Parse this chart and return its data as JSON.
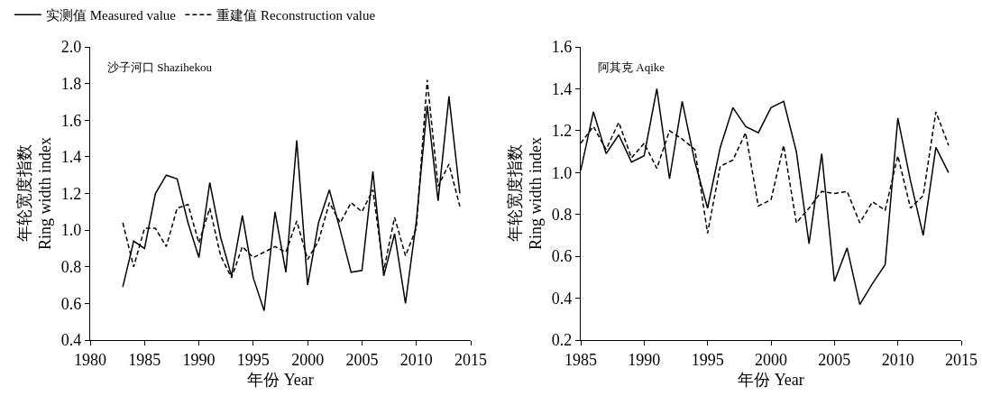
{
  "chart_data": [
    {
      "type": "line",
      "annotations": [
        "沙子河口 Shazihekou"
      ],
      "xlabel": "年份 Year",
      "ylabel": "年轮宽度指数\nRing width index",
      "x": [
        1983,
        1984,
        1985,
        1986,
        1987,
        1988,
        1989,
        1990,
        1991,
        1992,
        1993,
        1994,
        1995,
        1996,
        1997,
        1998,
        1999,
        2000,
        2001,
        2002,
        2003,
        2004,
        2005,
        2006,
        2007,
        2008,
        2009,
        2010,
        2011,
        2012,
        2013,
        2014
      ],
      "series": [
        {
          "name": "实测值 Measured value",
          "color": "#000000",
          "line_style": "solid",
          "values": [
            0.69,
            0.94,
            0.9,
            1.2,
            1.3,
            1.28,
            1.04,
            0.85,
            1.26,
            0.96,
            0.75,
            1.08,
            0.74,
            0.56,
            1.1,
            0.77,
            1.49,
            0.7,
            1.04,
            1.22,
            1.0,
            0.77,
            0.78,
            1.32,
            0.75,
            0.98,
            0.6,
            1.05,
            1.68,
            1.16,
            1.73,
            1.2
          ]
        },
        {
          "name": "重建值 Reconstruction value",
          "color": "#000000",
          "line_style": "dashed",
          "values": [
            1.04,
            0.8,
            1.01,
            1.01,
            0.91,
            1.12,
            1.14,
            0.93,
            1.12,
            0.86,
            0.74,
            0.91,
            0.85,
            0.88,
            0.91,
            0.88,
            1.05,
            0.84,
            0.94,
            1.15,
            1.04,
            1.15,
            1.1,
            1.22,
            0.78,
            1.07,
            0.86,
            1.01,
            1.82,
            1.24,
            1.36,
            1.13
          ]
        }
      ],
      "xlim": [
        1980,
        2015
      ],
      "xticks": [
        1980,
        1985,
        1990,
        1995,
        2000,
        2005,
        2010,
        2015
      ],
      "ylim": [
        0.4,
        2.0
      ],
      "yticks": [
        {
          "value": 0.4,
          "label": "0.4"
        },
        {
          "value": 0.6,
          "label": "0.6"
        },
        {
          "value": 0.8,
          "label": "0.8"
        },
        {
          "value": 1.0,
          "label": "1.0"
        },
        {
          "value": 1.2,
          "label": "1.2"
        },
        {
          "value": 1.4,
          "label": "1.4"
        },
        {
          "value": 1.6,
          "label": "1.6"
        },
        {
          "value": 1.8,
          "label": "1.8"
        },
        {
          "value": 2.0,
          "label": "2.0"
        }
      ],
      "grid": false,
      "legend": "top",
      "marker": "none"
    },
    {
      "type": "line",
      "annotations": [
        "阿其克 Aqike"
      ],
      "xlabel": "年份 Year",
      "ylabel": "年轮宽度指数\nRing width index",
      "x": [
        1985,
        1986,
        1987,
        1988,
        1989,
        1990,
        1991,
        1992,
        1993,
        1994,
        1995,
        1996,
        1997,
        1998,
        1999,
        2000,
        2001,
        2002,
        2003,
        2004,
        2005,
        2006,
        2007,
        2008,
        2009,
        2010,
        2011,
        2012,
        2013,
        2014
      ],
      "series": [
        {
          "color": "#000000",
          "line_style": "solid",
          "values": [
            1.01,
            1.29,
            1.09,
            1.18,
            1.05,
            1.08,
            1.4,
            0.97,
            1.34,
            1.05,
            0.83,
            1.12,
            1.31,
            1.22,
            1.19,
            1.31,
            1.34,
            1.1,
            0.66,
            1.09,
            0.48,
            0.64,
            0.37,
            0.47,
            0.56,
            1.26,
            0.96,
            0.7,
            1.12,
            1.0
          ]
        },
        {
          "color": "#000000",
          "line_style": "dashed",
          "values": [
            1.14,
            1.22,
            1.11,
            1.24,
            1.07,
            1.14,
            1.02,
            1.2,
            1.16,
            1.11,
            0.71,
            1.03,
            1.06,
            1.19,
            0.84,
            0.87,
            1.13,
            0.76,
            0.83,
            0.91,
            0.9,
            0.91,
            0.76,
            0.86,
            0.82,
            1.08,
            0.83,
            0.89,
            1.29,
            1.13
          ]
        }
      ],
      "xlim": [
        1985,
        2015
      ],
      "xticks": [
        1985,
        1990,
        1995,
        2000,
        2005,
        2010,
        2015
      ],
      "ylim": [
        0.2,
        1.6
      ],
      "yticks": [
        {
          "value": 0.2,
          "label": "0.2"
        },
        {
          "value": 0.4,
          "label": "0.4"
        },
        {
          "value": 0.6,
          "label": "0.6"
        },
        {
          "value": 0.8,
          "label": "0.8"
        },
        {
          "value": 1.0,
          "label": "1.0"
        },
        {
          "value": 1.2,
          "label": "1.2"
        },
        {
          "value": 1.4,
          "label": "1.4"
        },
        {
          "value": 1.6,
          "label": "1.6"
        }
      ],
      "grid": false,
      "legend": false,
      "marker": "none"
    }
  ]
}
